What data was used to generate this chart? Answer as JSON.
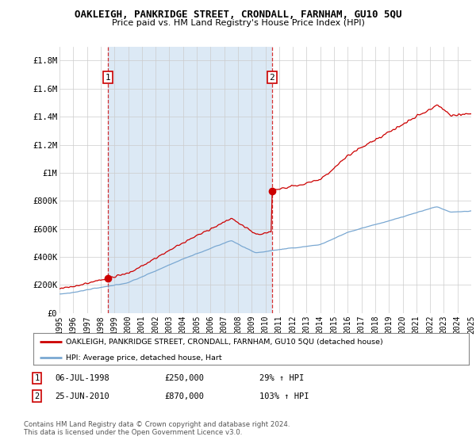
{
  "title": "OAKLEIGH, PANKRIDGE STREET, CRONDALL, FARNHAM, GU10 5QU",
  "subtitle": "Price paid vs. HM Land Registry's House Price Index (HPI)",
  "ylabel_ticks": [
    "£0",
    "£200K",
    "£400K",
    "£600K",
    "£800K",
    "£1M",
    "£1.2M",
    "£1.4M",
    "£1.6M",
    "£1.8M"
  ],
  "ytick_values": [
    0,
    200000,
    400000,
    600000,
    800000,
    1000000,
    1200000,
    1400000,
    1600000,
    1800000
  ],
  "ymax": 1900000,
  "xmin_year": 1995,
  "xmax_year": 2025,
  "xtick_years": [
    1995,
    1996,
    1997,
    1998,
    1999,
    2000,
    2001,
    2002,
    2003,
    2004,
    2005,
    2006,
    2007,
    2008,
    2009,
    2010,
    2011,
    2012,
    2013,
    2014,
    2015,
    2016,
    2017,
    2018,
    2019,
    2020,
    2021,
    2022,
    2023,
    2024,
    2025
  ],
  "bg_color": "#ffffff",
  "shaded_color": "#dce9f5",
  "grid_color": "#cccccc",
  "red_line_color": "#cc0000",
  "blue_line_color": "#7aa8d2",
  "sale1_year": 1998.52,
  "sale1_price": 250000,
  "sale2_year": 2010.49,
  "sale2_price": 870000,
  "legend_label_red": "OAKLEIGH, PANKRIDGE STREET, CRONDALL, FARNHAM, GU10 5QU (detached house)",
  "legend_label_blue": "HPI: Average price, detached house, Hart",
  "annotation1_label": "1",
  "annotation1_date": "06-JUL-1998",
  "annotation1_price": "£250,000",
  "annotation1_hpi": "29% ↑ HPI",
  "annotation2_label": "2",
  "annotation2_date": "25-JUN-2010",
  "annotation2_price": "£870,000",
  "annotation2_hpi": "103% ↑ HPI",
  "footer": "Contains HM Land Registry data © Crown copyright and database right 2024.\nThis data is licensed under the Open Government Licence v3.0."
}
